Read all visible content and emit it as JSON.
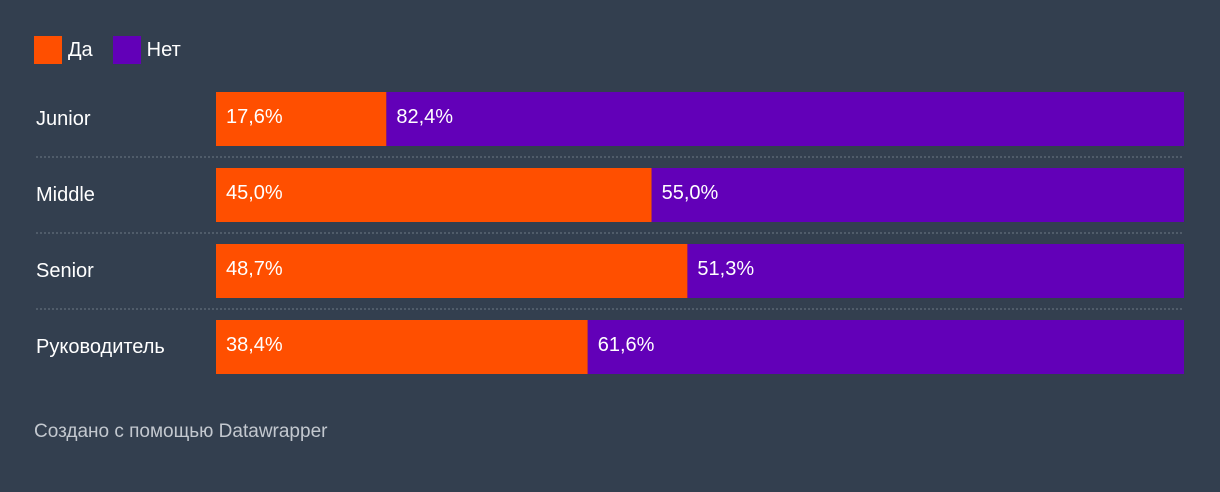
{
  "legend": {
    "items": [
      {
        "label": "Да",
        "color": "#ff4f00"
      },
      {
        "label": "Нет",
        "color": "#6200b8"
      }
    ]
  },
  "chart_data": {
    "type": "bar",
    "orientation": "horizontal",
    "stacked": true,
    "categories": [
      "Junior",
      "Middle",
      "Senior",
      "Руководитель"
    ],
    "series": [
      {
        "name": "Да",
        "values": [
          17.6,
          45.0,
          48.7,
          38.4
        ],
        "labels": [
          "17,6%",
          "45,0%",
          "48,7%",
          "38,4%"
        ],
        "color": "#ff4f00"
      },
      {
        "name": "Нет",
        "values": [
          82.4,
          55.0,
          51.3,
          61.6
        ],
        "labels": [
          "82,4%",
          "55,0%",
          "51,3%",
          "61,6%"
        ],
        "color": "#6200b8"
      }
    ],
    "xlim": [
      0,
      100
    ],
    "legend_position": "top-left",
    "grid": false
  },
  "footer": {
    "text": "Создано с помощью Datawrapper"
  }
}
